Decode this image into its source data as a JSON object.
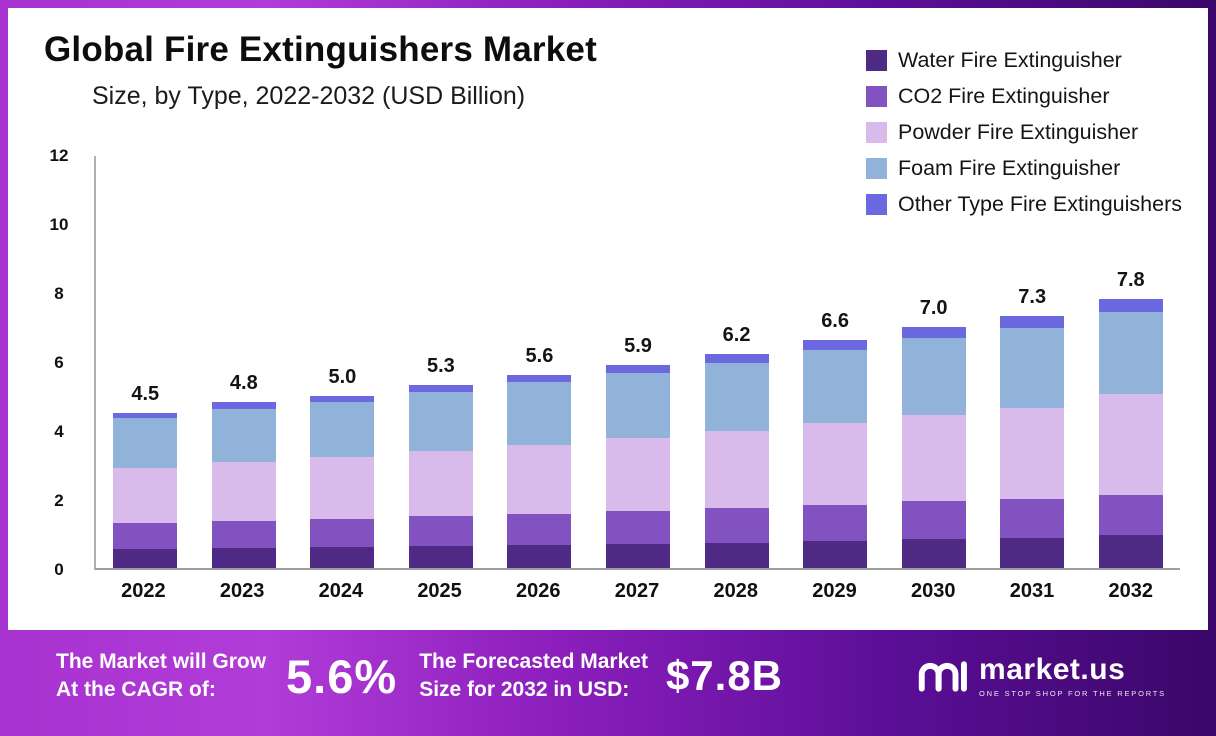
{
  "chart_data": {
    "type": "bar",
    "stacked": true,
    "title": "Global Fire Extinguishers Market",
    "subtitle": "Size, by Type, 2022-2032 (USD Billion)",
    "xlabel": "",
    "ylabel": "",
    "ylim": [
      0,
      12
    ],
    "yticks": [
      0,
      2,
      4,
      6,
      8,
      10,
      12
    ],
    "grid": false,
    "legend_position": "top-right",
    "categories": [
      "2022",
      "2023",
      "2024",
      "2025",
      "2026",
      "2027",
      "2028",
      "2029",
      "2030",
      "2031",
      "2032"
    ],
    "totals": [
      4.5,
      4.8,
      5.0,
      5.3,
      5.6,
      5.9,
      6.2,
      6.6,
      7.0,
      7.3,
      7.8
    ],
    "series": [
      {
        "name": "Water Fire Extinguisher",
        "color": "#4e2a84",
        "values": [
          0.55,
          0.58,
          0.6,
          0.63,
          0.66,
          0.7,
          0.74,
          0.78,
          0.83,
          0.88,
          0.95
        ]
      },
      {
        "name": "CO2 Fire Extinguisher",
        "color": "#8253c0",
        "values": [
          0.75,
          0.79,
          0.82,
          0.87,
          0.91,
          0.96,
          1.0,
          1.05,
          1.1,
          1.13,
          1.17
        ]
      },
      {
        "name": "Powder Fire Extinguisher",
        "color": "#d8bbeb",
        "values": [
          1.6,
          1.71,
          1.79,
          1.9,
          2.01,
          2.12,
          2.23,
          2.38,
          2.52,
          2.64,
          2.93
        ]
      },
      {
        "name": "Foam Fire Extinguisher",
        "color": "#92b3d9",
        "values": [
          1.45,
          1.54,
          1.61,
          1.7,
          1.8,
          1.88,
          1.97,
          2.1,
          2.23,
          2.32,
          2.38
        ]
      },
      {
        "name": "Other Type Fire Extinguishers",
        "color": "#6b68e0",
        "values": [
          0.15,
          0.18,
          0.18,
          0.2,
          0.22,
          0.24,
          0.26,
          0.29,
          0.32,
          0.33,
          0.37
        ]
      }
    ]
  },
  "footer": {
    "cagr_label_line1": "The Market will Grow",
    "cagr_label_line2": "At the CAGR of:",
    "cagr_value": "5.6%",
    "forecast_label_line1": "The Forecasted Market",
    "forecast_label_line2": "Size for 2032 in USD:",
    "forecast_value": "$7.8B",
    "brand": "market.us",
    "brand_tagline": "ONE STOP SHOP FOR THE REPORTS"
  }
}
